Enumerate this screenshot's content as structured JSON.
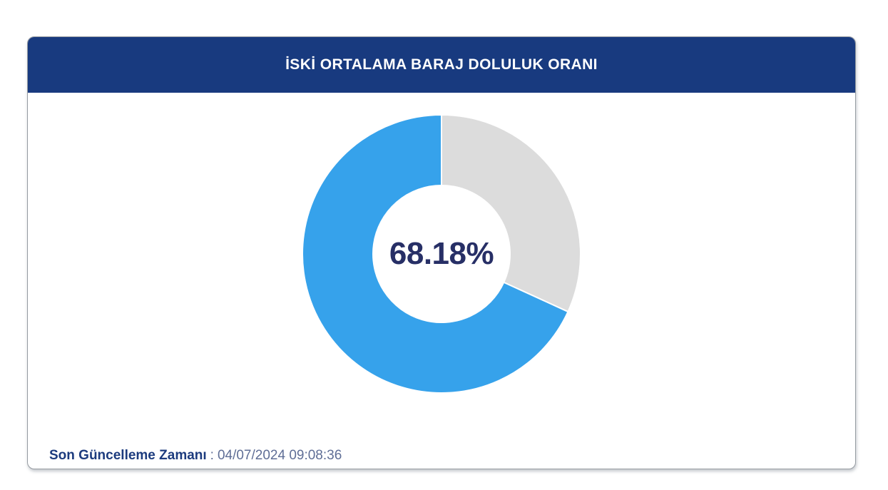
{
  "colors": {
    "page_background": "#ffffff",
    "header_background": "#183a7f",
    "header_text": "#ffffff",
    "card_border": "#969ba1",
    "center_label_text": "#272f66",
    "footer_label_text": "#1c3b7e",
    "footer_timestamp_text": "#5f6e96",
    "chart_filled": "#36a2eb",
    "chart_remaining": "#dcdcdc"
  },
  "card": {
    "header": {
      "title": "İSKİ ORTALAMA BARAJ DOLULUK ORANI"
    },
    "footer": {
      "label": "Son Güncelleme Zamanı",
      "separator": ":",
      "timestamp": "04/07/2024 09:08:36"
    }
  },
  "chart_data": {
    "type": "pie",
    "variant": "doughnut",
    "title": "İSKİ ORTALAMA BARAJ DOLULUK ORANI",
    "center_label": "68.18%",
    "filled_percent": 68.18,
    "remaining_percent": 31.82,
    "values": [
      31.82,
      68.18
    ],
    "segment_roles": [
      "remaining",
      "filled"
    ],
    "colors": [
      "#dcdcdc",
      "#36a2eb"
    ],
    "start_angle_deg": 0,
    "direction": "clockwise",
    "cutout_percent": 49,
    "outer_radius_px": 195,
    "inner_radius_px": 96,
    "segment_border_color": "#ffffff",
    "segment_border_width": 2,
    "legend_position": "none",
    "grid": false
  }
}
